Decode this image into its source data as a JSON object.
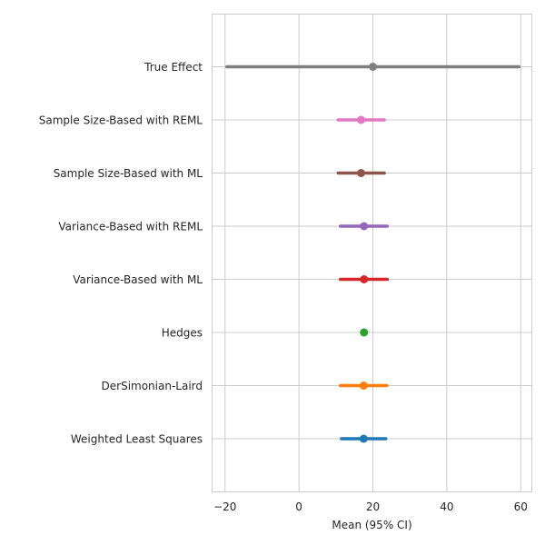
{
  "chart_data": {
    "type": "scatter",
    "subtype": "forest-plot",
    "title": "",
    "xlabel": "Mean (95% CI)",
    "ylabel": "",
    "xlim": [
      -23.5,
      63
    ],
    "xticks": [
      -20,
      0,
      20,
      40,
      60
    ],
    "xtick_labels": [
      "−20",
      "0",
      "20",
      "40",
      "60"
    ],
    "grid": true,
    "legend": "none",
    "series": [
      {
        "label": "Weighted Least Squares",
        "mean": 17.5,
        "lower": 11.5,
        "upper": 23.5,
        "color": "#1f77b4"
      },
      {
        "label": "DerSimonian-Laird",
        "mean": 17.5,
        "lower": 11.2,
        "upper": 23.8,
        "color": "#ff7f0e"
      },
      {
        "label": "Hedges",
        "mean": 17.6,
        "lower": 17.6,
        "upper": 17.6,
        "color": "#2ca02c"
      },
      {
        "label": "Variance-Based with ML",
        "mean": 17.6,
        "lower": 11.2,
        "upper": 23.9,
        "color": "#d62728"
      },
      {
        "label": "Variance-Based with REML",
        "mean": 17.6,
        "lower": 11.2,
        "upper": 23.9,
        "color": "#9467bd"
      },
      {
        "label": "Sample Size-Based with ML",
        "mean": 16.8,
        "lower": 10.6,
        "upper": 23.1,
        "color": "#8c564b"
      },
      {
        "label": "Sample Size-Based with REML",
        "mean": 16.8,
        "lower": 10.6,
        "upper": 23.1,
        "color": "#e377c2"
      },
      {
        "label": "True Effect",
        "mean": 20.0,
        "lower": -19.5,
        "upper": 59.5,
        "color": "#7f7f7f"
      }
    ]
  }
}
